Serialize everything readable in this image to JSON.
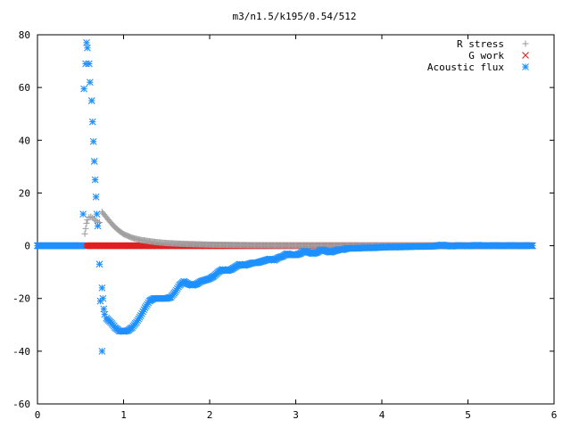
{
  "chart_data": {
    "type": "scatter",
    "title": "m3/n1.5/k195/0.54/512",
    "xlabel": "",
    "ylabel": "",
    "xlim": [
      0,
      6
    ],
    "ylim": [
      -60,
      80
    ],
    "x_ticks": [
      "0",
      "1",
      "2",
      "3",
      "4",
      "5",
      "6"
    ],
    "y_ticks": [
      "-60",
      "-40",
      "-20",
      "0",
      "20",
      "40",
      "60",
      "80"
    ],
    "legend_position": "top-right",
    "series": [
      {
        "name": "R stress",
        "marker": "plus",
        "color": "#a0a0a0",
        "points": [
          [
            0.55,
            4.5
          ],
          [
            0.56,
            6.5
          ],
          [
            0.57,
            8.5
          ],
          [
            0.58,
            9.8
          ],
          [
            0.6,
            10.8
          ],
          [
            0.62,
            11.0
          ],
          [
            0.64,
            10.6
          ],
          [
            0.66,
            10.0
          ],
          [
            0.68,
            9.5
          ],
          [
            0.7,
            9.0
          ],
          [
            0.72,
            8.8
          ],
          [
            0.75,
            12.8
          ],
          [
            0.8,
            10.8
          ],
          [
            0.85,
            8.8
          ],
          [
            0.9,
            7.0
          ],
          [
            0.95,
            5.6
          ],
          [
            1.0,
            4.4
          ],
          [
            1.1,
            3.0
          ],
          [
            1.2,
            2.2
          ],
          [
            1.3,
            1.7
          ],
          [
            1.4,
            1.3
          ],
          [
            1.5,
            1.0
          ],
          [
            1.7,
            0.7
          ],
          [
            2.0,
            0.4
          ],
          [
            2.5,
            0.2
          ],
          [
            3.0,
            0.1
          ],
          [
            4.0,
            0.05
          ],
          [
            5.0,
            0.02
          ],
          [
            5.75,
            0.0
          ]
        ]
      },
      {
        "name": "G work",
        "marker": "cross",
        "color": "#e02020",
        "points": [
          [
            0.55,
            0.0
          ],
          [
            0.8,
            0.0
          ],
          [
            1.0,
            0.0
          ],
          [
            1.5,
            0.0
          ],
          [
            2.0,
            0.0
          ],
          [
            2.5,
            0.0
          ],
          [
            3.0,
            0.0
          ],
          [
            3.5,
            0.0
          ],
          [
            4.0,
            0.0
          ],
          [
            4.5,
            0.0
          ],
          [
            5.0,
            0.0
          ],
          [
            5.75,
            0.0
          ]
        ]
      },
      {
        "name": "Acoustic flux",
        "marker": "star",
        "color": "#1e90ff",
        "points": [
          [
            0.0,
            0.0
          ],
          [
            0.5,
            0.0
          ],
          [
            0.53,
            12.0
          ],
          [
            0.54,
            59.5
          ],
          [
            0.56,
            69.0
          ],
          [
            0.57,
            77.0
          ],
          [
            0.58,
            75.0
          ],
          [
            0.6,
            69.0
          ],
          [
            0.61,
            62.0
          ],
          [
            0.63,
            55.0
          ],
          [
            0.64,
            47.0
          ],
          [
            0.65,
            39.5
          ],
          [
            0.66,
            32.0
          ],
          [
            0.67,
            25.0
          ],
          [
            0.68,
            18.5
          ],
          [
            0.69,
            12.0
          ],
          [
            0.7,
            7.5
          ],
          [
            0.72,
            -7.0
          ],
          [
            0.73,
            -21.0
          ],
          [
            0.75,
            -16.0
          ],
          [
            0.76,
            -20.0
          ],
          [
            0.77,
            -24.0
          ],
          [
            0.78,
            -26.0
          ],
          [
            0.8,
            -27.5
          ],
          [
            0.75,
            -40.0
          ],
          [
            0.85,
            -29.0
          ],
          [
            0.9,
            -31.0
          ],
          [
            0.95,
            -32.3
          ],
          [
            1.0,
            -32.5
          ],
          [
            1.05,
            -32.2
          ],
          [
            1.1,
            -31.0
          ],
          [
            1.15,
            -29.0
          ],
          [
            1.2,
            -26.5
          ],
          [
            1.25,
            -23.5
          ],
          [
            1.3,
            -21.0
          ],
          [
            1.35,
            -20.0
          ],
          [
            1.4,
            -20.0
          ],
          [
            1.45,
            -20.0
          ],
          [
            1.5,
            -20.0
          ],
          [
            1.55,
            -19.5
          ],
          [
            1.6,
            -17.5
          ],
          [
            1.65,
            -15.0
          ],
          [
            1.7,
            -13.5
          ],
          [
            1.75,
            -14.5
          ],
          [
            1.8,
            -15.0
          ],
          [
            1.85,
            -14.5
          ],
          [
            1.9,
            -13.5
          ],
          [
            1.95,
            -13.0
          ],
          [
            2.0,
            -12.5
          ],
          [
            2.05,
            -11.5
          ],
          [
            2.1,
            -10.0
          ],
          [
            2.15,
            -9.0
          ],
          [
            2.2,
            -9.5
          ],
          [
            2.25,
            -9.0
          ],
          [
            2.3,
            -8.0
          ],
          [
            2.35,
            -7.0
          ],
          [
            2.4,
            -7.5
          ],
          [
            2.45,
            -7.0
          ],
          [
            2.5,
            -6.5
          ],
          [
            2.55,
            -6.5
          ],
          [
            2.6,
            -6.0
          ],
          [
            2.65,
            -5.5
          ],
          [
            2.7,
            -5.0
          ],
          [
            2.75,
            -5.5
          ],
          [
            2.8,
            -4.5
          ],
          [
            2.85,
            -4.0
          ],
          [
            2.9,
            -3.0
          ],
          [
            2.95,
            -3.5
          ],
          [
            3.0,
            -3.5
          ],
          [
            3.05,
            -3.0
          ],
          [
            3.1,
            -2.0
          ],
          [
            3.15,
            -2.5
          ],
          [
            3.2,
            -3.0
          ],
          [
            3.25,
            -2.5
          ],
          [
            3.3,
            -1.5
          ],
          [
            3.35,
            -2.0
          ],
          [
            3.4,
            -2.5
          ],
          [
            3.45,
            -2.0
          ],
          [
            3.5,
            -1.5
          ],
          [
            3.55,
            -1.5
          ],
          [
            3.6,
            -1.0
          ],
          [
            3.7,
            -1.0
          ],
          [
            3.8,
            -0.8
          ],
          [
            3.9,
            -0.8
          ],
          [
            4.0,
            -0.6
          ],
          [
            4.1,
            -0.5
          ],
          [
            4.2,
            -0.5
          ],
          [
            4.3,
            -0.4
          ],
          [
            4.4,
            -0.3
          ],
          [
            4.5,
            -0.3
          ],
          [
            4.6,
            -0.2
          ],
          [
            4.7,
            0.3
          ],
          [
            4.8,
            -0.2
          ],
          [
            4.9,
            0.1
          ],
          [
            5.0,
            -0.1
          ],
          [
            5.1,
            0.2
          ],
          [
            5.2,
            0.0
          ],
          [
            5.3,
            0.1
          ],
          [
            5.4,
            0.0
          ],
          [
            5.5,
            0.1
          ],
          [
            5.6,
            0.0
          ],
          [
            5.7,
            0.1
          ],
          [
            5.75,
            0.0
          ]
        ]
      }
    ]
  }
}
